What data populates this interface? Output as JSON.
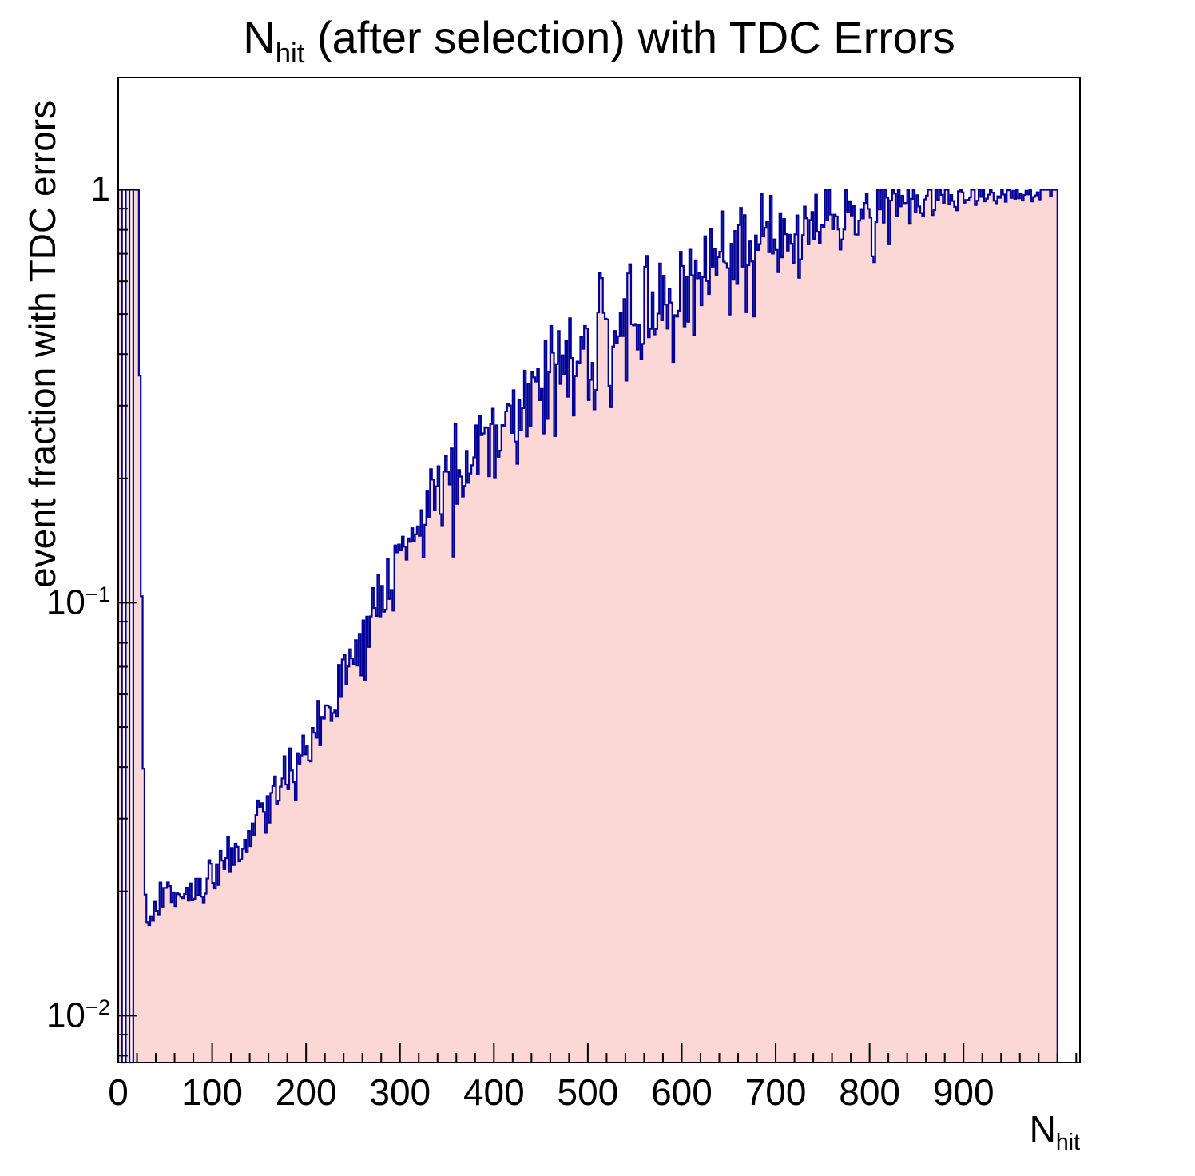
{
  "chart_data": {
    "type": "histogram",
    "title": {
      "prefix": "N",
      "sub": "hit",
      "rest": " (after selection) with TDC Errors"
    },
    "ylabel": "event fraction with TDC errors",
    "xlabel": {
      "prefix": "N",
      "sub": "hit"
    },
    "x_range": [
      0,
      1024
    ],
    "y_range_log": [
      0.0077,
      1.87
    ],
    "x_major_ticks": [
      0,
      100,
      200,
      300,
      400,
      500,
      600,
      700,
      800,
      900
    ],
    "x_minor_step": 20,
    "y_major_ticks": [
      {
        "value": 1,
        "base": "1",
        "exp": ""
      },
      {
        "value": 0.1,
        "base": "10",
        "exp": "−1"
      },
      {
        "value": 0.01,
        "base": "10",
        "exp": "−2"
      }
    ],
    "grid": false,
    "legend": null,
    "bin_width": 2,
    "data_end": 1000,
    "gap_bins": [
      [
        4,
        8
      ],
      [
        12,
        16
      ]
    ],
    "cap": 1.0,
    "seed": 1379,
    "profile_log_points": [
      [
        0,
        1
      ],
      [
        21,
        1
      ],
      [
        23,
        0.35
      ],
      [
        25,
        0.1
      ],
      [
        27,
        0.038
      ],
      [
        29,
        0.021
      ],
      [
        32,
        0.0172
      ],
      [
        36,
        0.017
      ],
      [
        40,
        0.0185
      ],
      [
        48,
        0.019
      ],
      [
        56,
        0.0198
      ],
      [
        64,
        0.0196
      ],
      [
        72,
        0.0195
      ],
      [
        80,
        0.0205
      ],
      [
        90,
        0.021
      ],
      [
        100,
        0.0215
      ],
      [
        110,
        0.022
      ],
      [
        120,
        0.0235
      ],
      [
        130,
        0.025
      ],
      [
        140,
        0.027
      ],
      [
        150,
        0.03
      ],
      [
        160,
        0.032
      ],
      [
        170,
        0.034
      ],
      [
        180,
        0.037
      ],
      [
        190,
        0.04
      ],
      [
        200,
        0.044
      ],
      [
        210,
        0.049
      ],
      [
        220,
        0.054
      ],
      [
        230,
        0.06
      ],
      [
        240,
        0.067
      ],
      [
        250,
        0.074
      ],
      [
        260,
        0.082
      ],
      [
        270,
        0.091
      ],
      [
        280,
        0.101
      ],
      [
        290,
        0.112
      ],
      [
        300,
        0.124
      ],
      [
        310,
        0.136
      ],
      [
        320,
        0.148
      ],
      [
        330,
        0.16
      ],
      [
        340,
        0.173
      ],
      [
        350,
        0.187
      ],
      [
        360,
        0.201
      ],
      [
        370,
        0.215
      ],
      [
        380,
        0.23
      ],
      [
        390,
        0.246
      ],
      [
        400,
        0.262
      ],
      [
        420,
        0.294
      ],
      [
        440,
        0.325
      ],
      [
        460,
        0.356
      ],
      [
        480,
        0.387
      ],
      [
        500,
        0.418
      ],
      [
        520,
        0.449
      ],
      [
        540,
        0.481
      ],
      [
        560,
        0.513
      ],
      [
        580,
        0.545
      ],
      [
        600,
        0.577
      ],
      [
        620,
        0.61
      ],
      [
        640,
        0.644
      ],
      [
        660,
        0.678
      ],
      [
        680,
        0.711
      ],
      [
        700,
        0.744
      ],
      [
        720,
        0.777
      ],
      [
        740,
        0.809
      ],
      [
        760,
        0.839
      ],
      [
        780,
        0.867
      ],
      [
        800,
        0.892
      ],
      [
        820,
        0.914
      ],
      [
        840,
        0.932
      ],
      [
        860,
        0.947
      ],
      [
        880,
        0.959
      ],
      [
        900,
        0.969
      ],
      [
        920,
        0.977
      ],
      [
        940,
        0.984
      ],
      [
        960,
        0.99
      ],
      [
        980,
        0.995
      ],
      [
        1000,
        0.999
      ]
    ],
    "noise_sigma_dex_points": [
      [
        0,
        0
      ],
      [
        21,
        0
      ],
      [
        25,
        0.01
      ],
      [
        30,
        0.02
      ],
      [
        50,
        0.022
      ],
      [
        80,
        0.025
      ],
      [
        100,
        0.03
      ],
      [
        140,
        0.035
      ],
      [
        180,
        0.04
      ],
      [
        220,
        0.045
      ],
      [
        260,
        0.05
      ],
      [
        300,
        0.055
      ],
      [
        350,
        0.06
      ],
      [
        400,
        0.065
      ],
      [
        450,
        0.068
      ],
      [
        500,
        0.07
      ],
      [
        550,
        0.072
      ],
      [
        600,
        0.072
      ],
      [
        650,
        0.068
      ],
      [
        700,
        0.062
      ],
      [
        750,
        0.055
      ],
      [
        800,
        0.045
      ],
      [
        850,
        0.035
      ],
      [
        900,
        0.027
      ],
      [
        940,
        0.02
      ],
      [
        970,
        0.012
      ],
      [
        1000,
        0.008
      ]
    ],
    "colors": {
      "fill": "#fbd7d6",
      "line": "#000099",
      "frame": "#000000",
      "text": "#000000"
    }
  }
}
